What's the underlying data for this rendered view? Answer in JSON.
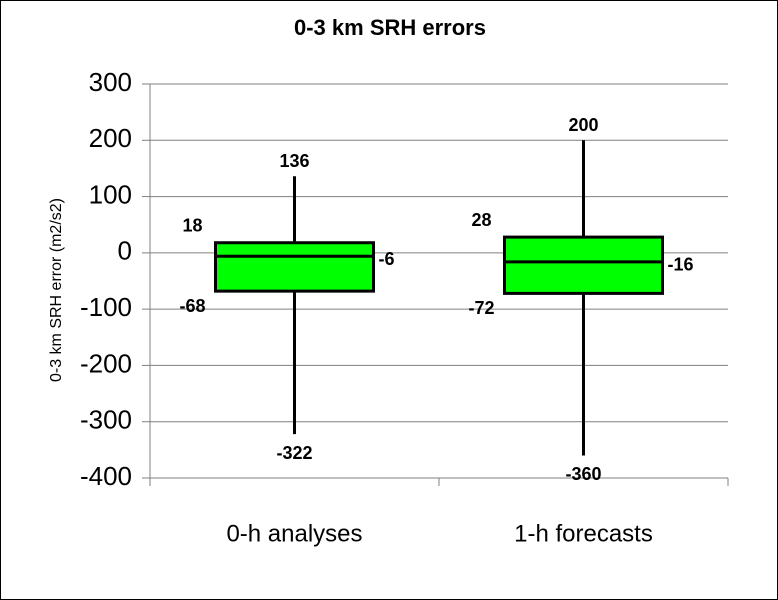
{
  "chart_data": {
    "type": "box",
    "title": "0-3 km SRH errors",
    "y_label": "0-3 km SRH error (m2/s2)",
    "categories": [
      "0-h analyses",
      "1-h forecasts"
    ],
    "min": [
      -322,
      -360
    ],
    "q1": [
      -68,
      -72
    ],
    "median": [
      -6,
      -16
    ],
    "q3": [
      18,
      28
    ],
    "max": [
      136,
      200
    ],
    "color": "#00ff00",
    "ylim": [
      -400,
      300
    ],
    "yticks": [
      -400,
      -300,
      -200,
      -100,
      0,
      100,
      200,
      300
    ],
    "grid": true
  }
}
